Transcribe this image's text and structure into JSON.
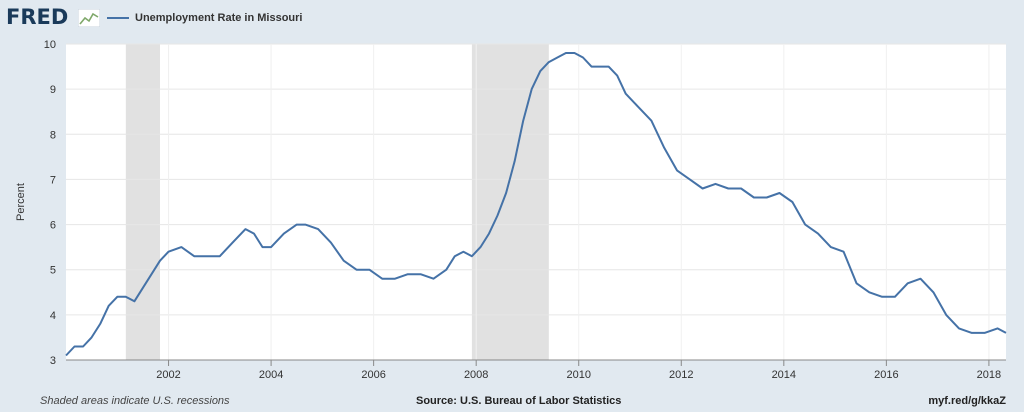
{
  "header": {
    "logo_text": "FRED",
    "legend_label": "Unemployment Rate in Missouri"
  },
  "footer": {
    "note": "Shaded areas indicate U.S. recessions",
    "source": "Source: U.S. Bureau of Labor Statistics",
    "link": "myf.red/g/kkaZ"
  },
  "colors": {
    "line": "#4572a7",
    "recession": "#e1e1e1",
    "frame": "#e1e9f0",
    "grid": "#e6e6e6"
  },
  "chart_data": {
    "type": "line",
    "title": "",
    "xlabel": "",
    "ylabel": "Percent",
    "ylim": [
      3,
      10
    ],
    "xlim": [
      "2000-01",
      "2018-05"
    ],
    "yticks": [
      3,
      4,
      5,
      6,
      7,
      8,
      9,
      10
    ],
    "xticks": [
      "2002",
      "2004",
      "2006",
      "2008",
      "2010",
      "2012",
      "2014",
      "2016",
      "2018"
    ],
    "grid": true,
    "legend_position": "top-left",
    "recessions": [
      [
        "2001-03",
        "2001-11"
      ],
      [
        "2007-12",
        "2009-06"
      ]
    ],
    "series": [
      {
        "name": "Unemployment Rate in Missouri",
        "x": [
          "2000-01",
          "2000-03",
          "2000-05",
          "2000-07",
          "2000-09",
          "2000-11",
          "2001-01",
          "2001-03",
          "2001-05",
          "2001-07",
          "2001-09",
          "2001-11",
          "2002-01",
          "2002-04",
          "2002-07",
          "2002-10",
          "2003-01",
          "2003-04",
          "2003-07",
          "2003-09",
          "2003-11",
          "2004-01",
          "2004-04",
          "2004-07",
          "2004-09",
          "2004-12",
          "2005-03",
          "2005-06",
          "2005-09",
          "2005-12",
          "2006-03",
          "2006-06",
          "2006-09",
          "2006-12",
          "2007-03",
          "2007-06",
          "2007-08",
          "2007-10",
          "2007-12",
          "2008-02",
          "2008-04",
          "2008-06",
          "2008-08",
          "2008-10",
          "2008-12",
          "2009-02",
          "2009-04",
          "2009-06",
          "2009-08",
          "2009-10",
          "2009-12",
          "2010-02",
          "2010-04",
          "2010-06",
          "2010-08",
          "2010-10",
          "2010-12",
          "2011-03",
          "2011-06",
          "2011-09",
          "2011-12",
          "2012-03",
          "2012-06",
          "2012-09",
          "2012-12",
          "2013-03",
          "2013-06",
          "2013-09",
          "2013-12",
          "2014-03",
          "2014-06",
          "2014-09",
          "2014-12",
          "2015-03",
          "2015-06",
          "2015-09",
          "2015-12",
          "2016-03",
          "2016-06",
          "2016-09",
          "2016-12",
          "2017-03",
          "2017-06",
          "2017-09",
          "2017-12",
          "2018-03",
          "2018-05"
        ],
        "values": [
          3.1,
          3.3,
          3.3,
          3.5,
          3.8,
          4.2,
          4.4,
          4.4,
          4.3,
          4.6,
          4.9,
          5.2,
          5.4,
          5.5,
          5.3,
          5.3,
          5.3,
          5.6,
          5.9,
          5.8,
          5.5,
          5.5,
          5.8,
          6.0,
          6.0,
          5.9,
          5.6,
          5.2,
          5.0,
          5.0,
          4.8,
          4.8,
          4.9,
          4.9,
          4.8,
          5.0,
          5.3,
          5.4,
          5.3,
          5.5,
          5.8,
          6.2,
          6.7,
          7.4,
          8.3,
          9.0,
          9.4,
          9.6,
          9.7,
          9.8,
          9.8,
          9.7,
          9.5,
          9.5,
          9.5,
          9.3,
          8.9,
          8.6,
          8.3,
          7.7,
          7.2,
          7.0,
          6.8,
          6.9,
          6.8,
          6.8,
          6.6,
          6.6,
          6.7,
          6.5,
          6.0,
          5.8,
          5.5,
          5.4,
          4.7,
          4.5,
          4.4,
          4.4,
          4.7,
          4.8,
          4.5,
          4.0,
          3.7,
          3.6,
          3.6,
          3.7,
          3.6
        ]
      }
    ]
  }
}
